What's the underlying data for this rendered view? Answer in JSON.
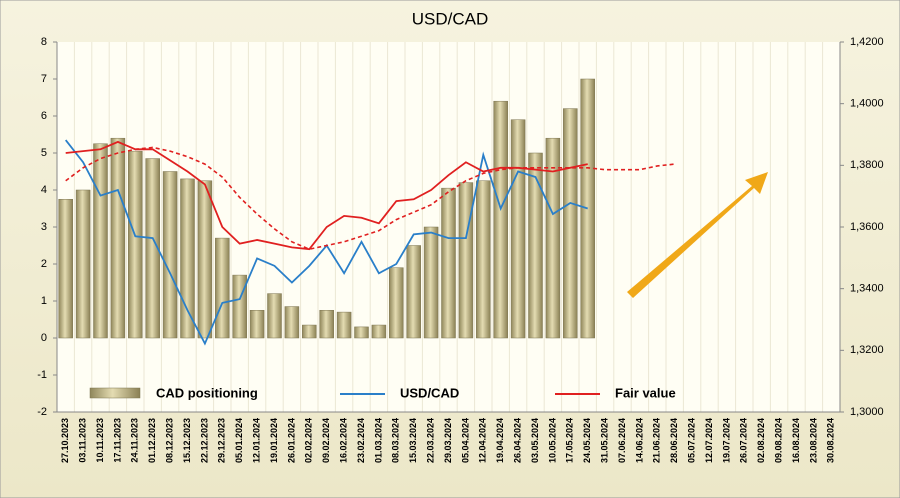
{
  "chart_data": {
    "type": "bar-line",
    "title": "USD/CAD",
    "categories": [
      "27.10.2023",
      "03.11.2023",
      "10.11.2023",
      "17.11.2023",
      "24.11.2023",
      "01.12.2023",
      "08.12.2023",
      "15.12.2023",
      "22.12.2023",
      "29.12.2023",
      "05.01.2024",
      "12.01.2024",
      "19.01.2024",
      "26.01.2024",
      "02.02.2024",
      "09.02.2024",
      "16.02.2024",
      "23.02.2024",
      "01.03.2024",
      "08.03.2024",
      "15.03.2024",
      "22.03.2024",
      "29.03.2024",
      "05.04.2024",
      "12.04.2024",
      "19.04.2024",
      "26.04.2024",
      "03.05.2024",
      "10.05.2024",
      "17.05.2024",
      "24.05.2024",
      "31.05.2024",
      "07.06.2024",
      "14.06.2024",
      "21.06.2024",
      "28.06.2024",
      "05.07.2024",
      "12.07.2024",
      "19.07.2024",
      "26.07.2024",
      "02.08.2024",
      "09.08.2024",
      "16.08.2024",
      "23.08.2024",
      "30.08.2024"
    ],
    "series": [
      {
        "name": "CAD positioning",
        "kind": "bar",
        "color": "#b8ae7c",
        "axis": "y",
        "values": [
          3.75,
          4.0,
          5.25,
          5.4,
          5.05,
          4.85,
          4.5,
          4.3,
          4.25,
          2.7,
          1.7,
          0.75,
          1.2,
          0.85,
          0.35,
          0.75,
          0.7,
          0.3,
          0.35,
          1.9,
          2.5,
          3.0,
          4.05,
          4.2,
          4.25,
          6.4,
          5.9,
          5.0,
          5.4,
          6.2,
          7.0,
          null,
          null,
          null,
          null,
          null,
          null,
          null,
          null,
          null,
          null,
          null,
          null,
          null,
          null
        ]
      },
      {
        "name": "USD/CAD",
        "kind": "line",
        "color": "#2a7fc9",
        "axis": "y2",
        "values": [
          1.3882,
          1.381,
          1.3702,
          1.372,
          1.357,
          1.3564,
          1.345,
          1.333,
          1.3222,
          1.3354,
          1.3366,
          1.3498,
          1.3474,
          1.342,
          1.3474,
          1.354,
          1.345,
          1.3552,
          1.345,
          1.348,
          1.3576,
          1.3582,
          1.3564,
          1.3564,
          1.3834,
          1.366,
          1.378,
          1.3762,
          1.3642,
          1.3678,
          1.366,
          null,
          null,
          null,
          null,
          null,
          null,
          null,
          null,
          null,
          null,
          null,
          null,
          null,
          null
        ]
      },
      {
        "name": "Fair value",
        "kind": "line",
        "color": "#e02020",
        "axis": "y2",
        "values": [
          1.384,
          1.3846,
          1.3852,
          1.3876,
          1.3852,
          1.3852,
          1.3816,
          1.378,
          1.3738,
          1.36,
          1.3546,
          1.3558,
          1.3546,
          1.3534,
          1.3528,
          1.36,
          1.3636,
          1.363,
          1.3612,
          1.3684,
          1.369,
          1.372,
          1.3768,
          1.381,
          1.378,
          1.3792,
          1.3792,
          1.3786,
          1.378,
          1.3792,
          1.3804,
          null,
          null,
          null,
          null,
          null,
          null,
          null,
          null,
          null,
          null,
          null,
          null,
          null,
          null
        ]
      },
      {
        "kind": "dashed",
        "color": "#e02020",
        "axis": "y2",
        "values": [
          1.375,
          1.3792,
          1.3822,
          1.384,
          1.3852,
          1.3858,
          1.3846,
          1.3828,
          1.3804,
          1.3762,
          1.3696,
          1.3642,
          1.3594,
          1.3552,
          1.3528,
          1.354,
          1.3552,
          1.357,
          1.3588,
          1.3624,
          1.3648,
          1.3672,
          1.3714,
          1.375,
          1.3774,
          1.3786,
          1.3792,
          1.3792,
          1.3792,
          1.3792,
          1.3792,
          1.3786,
          1.3786,
          1.3786,
          1.3798,
          1.3804,
          null,
          null,
          null,
          null,
          null,
          null,
          null,
          null,
          null
        ]
      }
    ],
    "ylim": [
      -2,
      8
    ],
    "yticks": [
      -2,
      -1,
      0,
      1,
      2,
      3,
      4,
      5,
      6,
      7,
      8
    ],
    "y2lim": [
      1.3,
      1.42
    ],
    "y2ticks": [
      {
        "value": 1.3,
        "label": "1,3000"
      },
      {
        "value": 1.32,
        "label": "1,3200"
      },
      {
        "value": 1.34,
        "label": "1,3400"
      },
      {
        "value": 1.36,
        "label": "1,3600"
      },
      {
        "value": 1.38,
        "label": "1,3800"
      },
      {
        "value": 1.4,
        "label": "1,4000"
      },
      {
        "value": 1.42,
        "label": "1,4200"
      }
    ],
    "grid": true
  }
}
